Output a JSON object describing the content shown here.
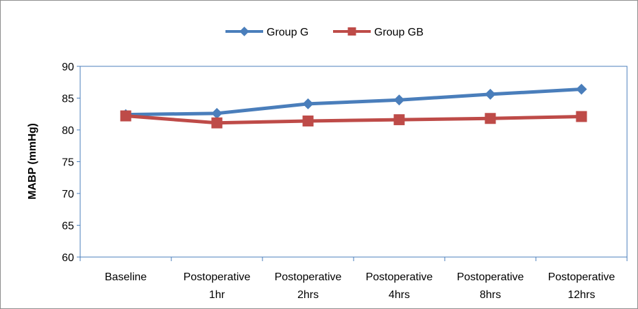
{
  "chart_data": {
    "type": "line",
    "title": "",
    "xlabel": "",
    "ylabel": "MABP (mmHg)",
    "ylim": [
      60,
      90
    ],
    "yticks": [
      60,
      65,
      70,
      75,
      80,
      85,
      90
    ],
    "grid": false,
    "legend_position": "top",
    "categories": [
      [
        "Baseline"
      ],
      [
        "Postoperative",
        "1hr"
      ],
      [
        "Postoperative",
        "2hrs"
      ],
      [
        "Postoperative",
        "4hrs"
      ],
      [
        "Postoperative",
        "8hrs"
      ],
      [
        "Postoperative",
        "12hrs"
      ]
    ],
    "series": [
      {
        "name": "Group G",
        "color": "#4A7EBB",
        "marker": "diamond",
        "values": [
          82.4,
          82.6,
          84.1,
          84.7,
          85.6,
          86.4
        ]
      },
      {
        "name": "Group GB",
        "color": "#BE4B48",
        "marker": "square",
        "values": [
          82.2,
          81.1,
          81.4,
          81.6,
          81.8,
          82.1
        ]
      }
    ]
  }
}
